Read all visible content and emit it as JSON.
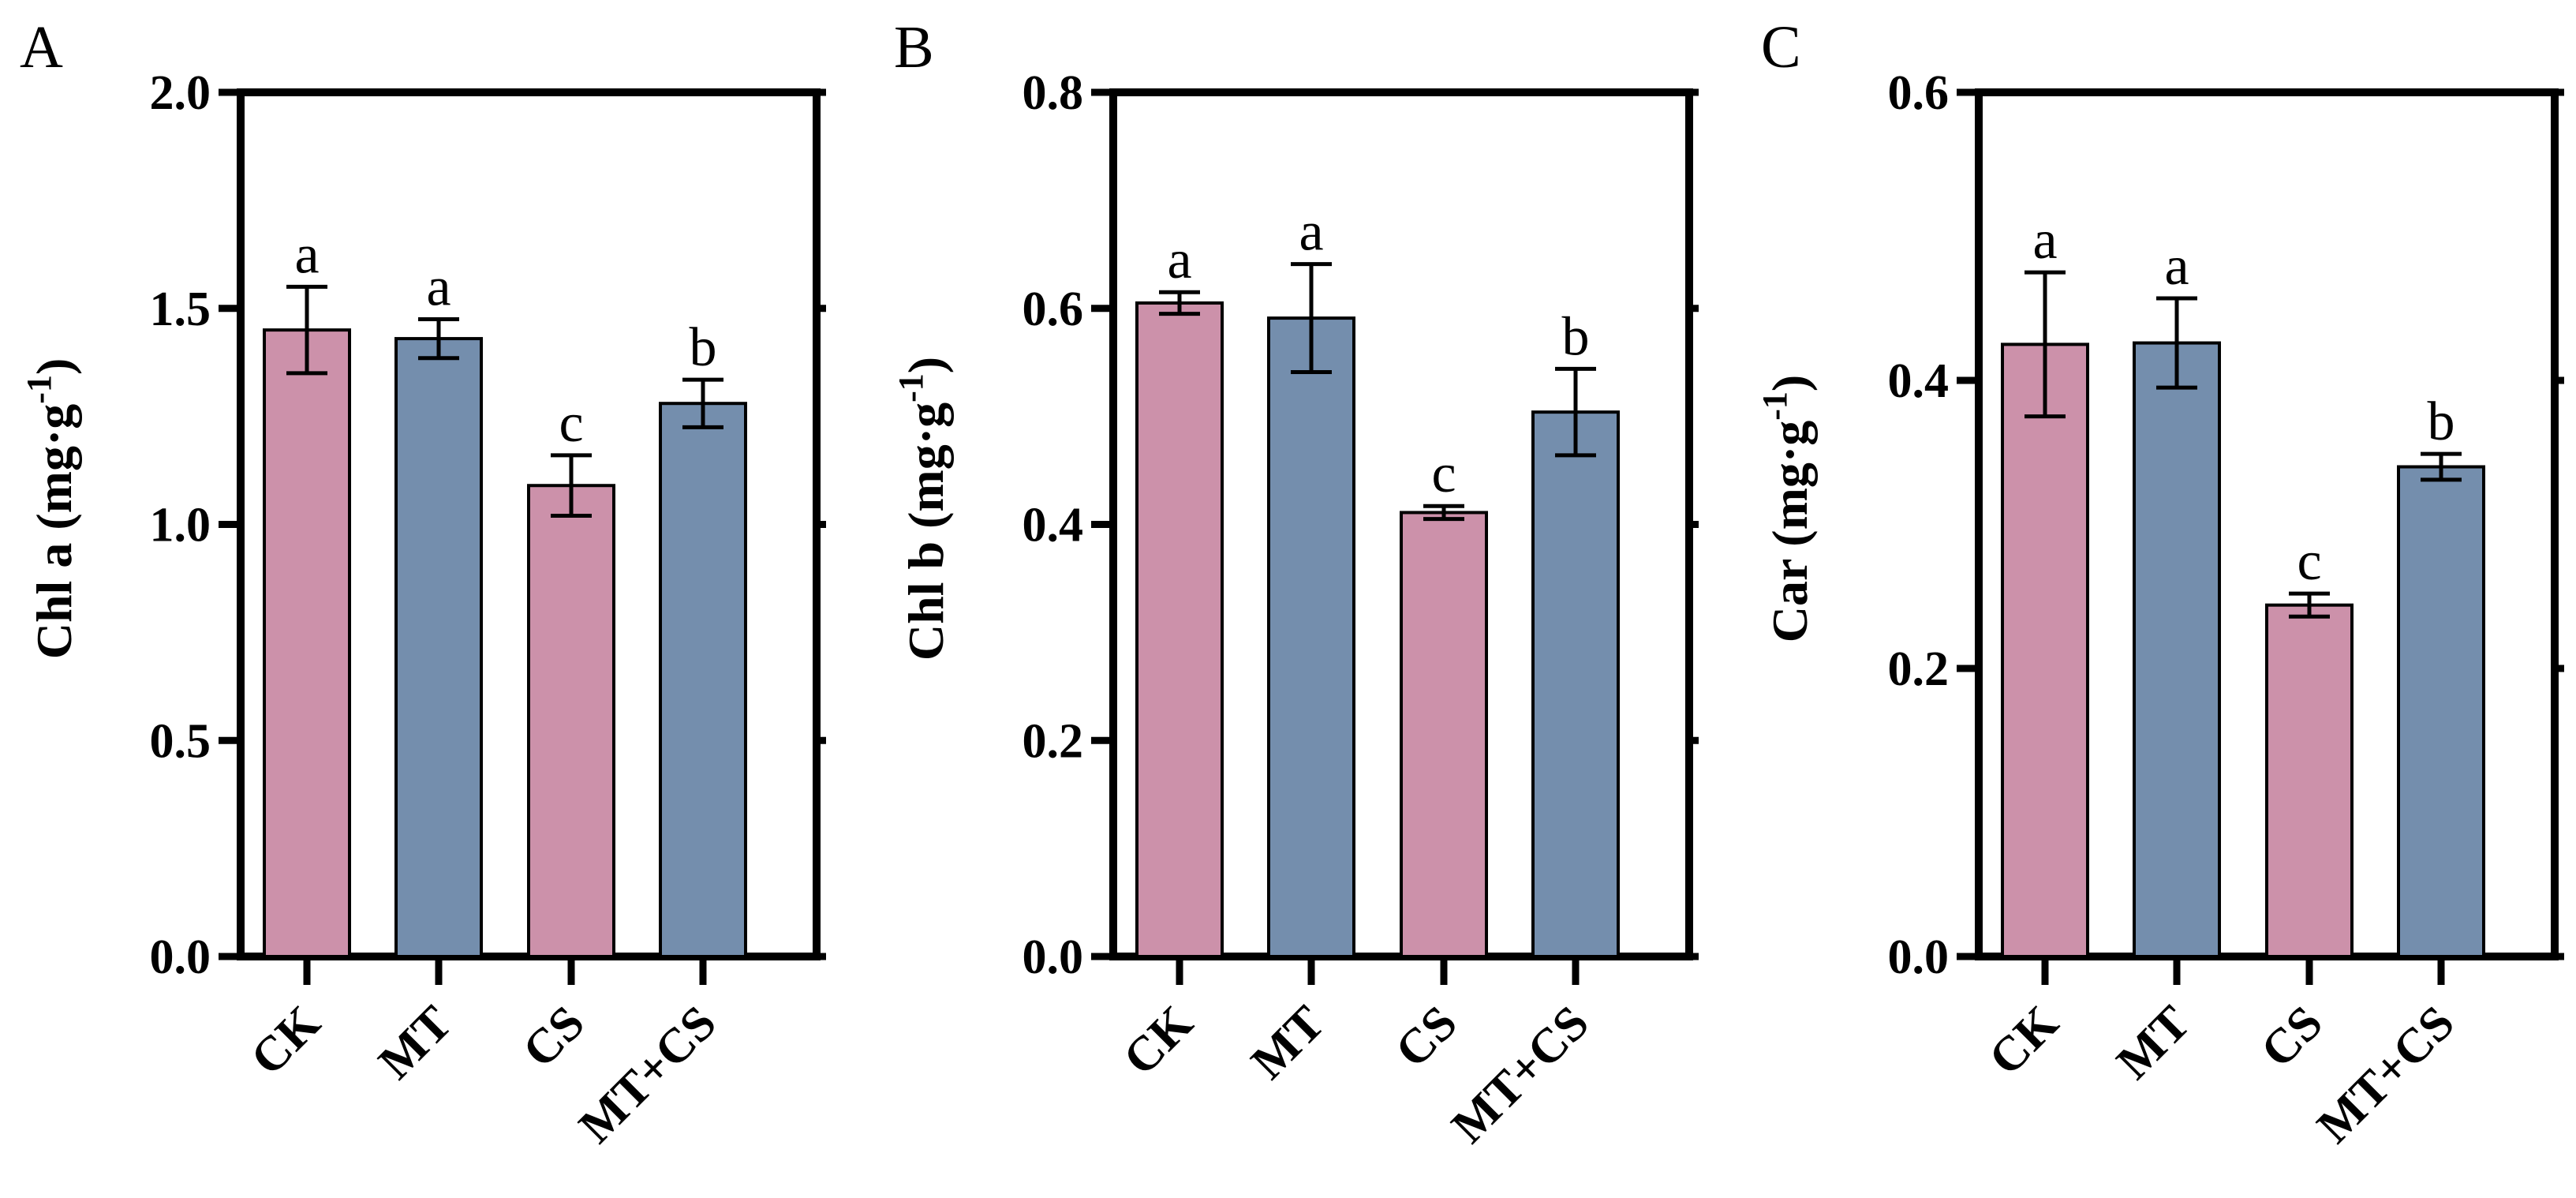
{
  "colors": {
    "pink": "#cc91aa",
    "blue": "#748ead",
    "axis": "#000000"
  },
  "chart_data": [
    {
      "type": "bar",
      "panel": "A",
      "ylabel_main": "Chl a (mg·g",
      "ylabel_sup": "-1",
      "ylabel_close": ")",
      "ylim": [
        0,
        2.0
      ],
      "yticks": [
        "0.0",
        "0.5",
        "1.0",
        "1.5",
        "2.0"
      ],
      "categories": [
        "CK",
        "MT",
        "CS",
        "MT+CS"
      ],
      "values": [
        1.45,
        1.43,
        1.09,
        1.28
      ],
      "errors": [
        0.1,
        0.045,
        0.07,
        0.055
      ],
      "letters": [
        "a",
        "a",
        "c",
        "b"
      ],
      "bar_colors": [
        "pink",
        "blue",
        "pink",
        "blue"
      ]
    },
    {
      "type": "bar",
      "panel": "B",
      "ylabel_main": "Chl b (mg·g",
      "ylabel_sup": "-1",
      "ylabel_close": ")",
      "ylim": [
        0,
        0.8
      ],
      "yticks": [
        "0.0",
        "0.2",
        "0.4",
        "0.6",
        "0.8"
      ],
      "categories": [
        "CK",
        "MT",
        "CS",
        "MT+CS"
      ],
      "values": [
        0.605,
        0.591,
        0.411,
        0.504
      ],
      "errors": [
        0.01,
        0.05,
        0.006,
        0.04
      ],
      "letters": [
        "a",
        "a",
        "c",
        "b"
      ],
      "bar_colors": [
        "pink",
        "blue",
        "pink",
        "blue"
      ]
    },
    {
      "type": "bar",
      "panel": "C",
      "ylabel_main": "Car (mg·g",
      "ylabel_sup": "-1",
      "ylabel_close": ")",
      "ylim": [
        0,
        0.6
      ],
      "yticks": [
        "0.0",
        "0.2",
        "0.4",
        "0.6"
      ],
      "categories": [
        "CK",
        "MT",
        "CS",
        "MT+CS"
      ],
      "values": [
        0.425,
        0.426,
        0.244,
        0.34
      ],
      "errors": [
        0.05,
        0.031,
        0.008,
        0.009
      ],
      "letters": [
        "a",
        "a",
        "c",
        "b"
      ],
      "bar_colors": [
        "pink",
        "blue",
        "pink",
        "blue"
      ]
    }
  ]
}
